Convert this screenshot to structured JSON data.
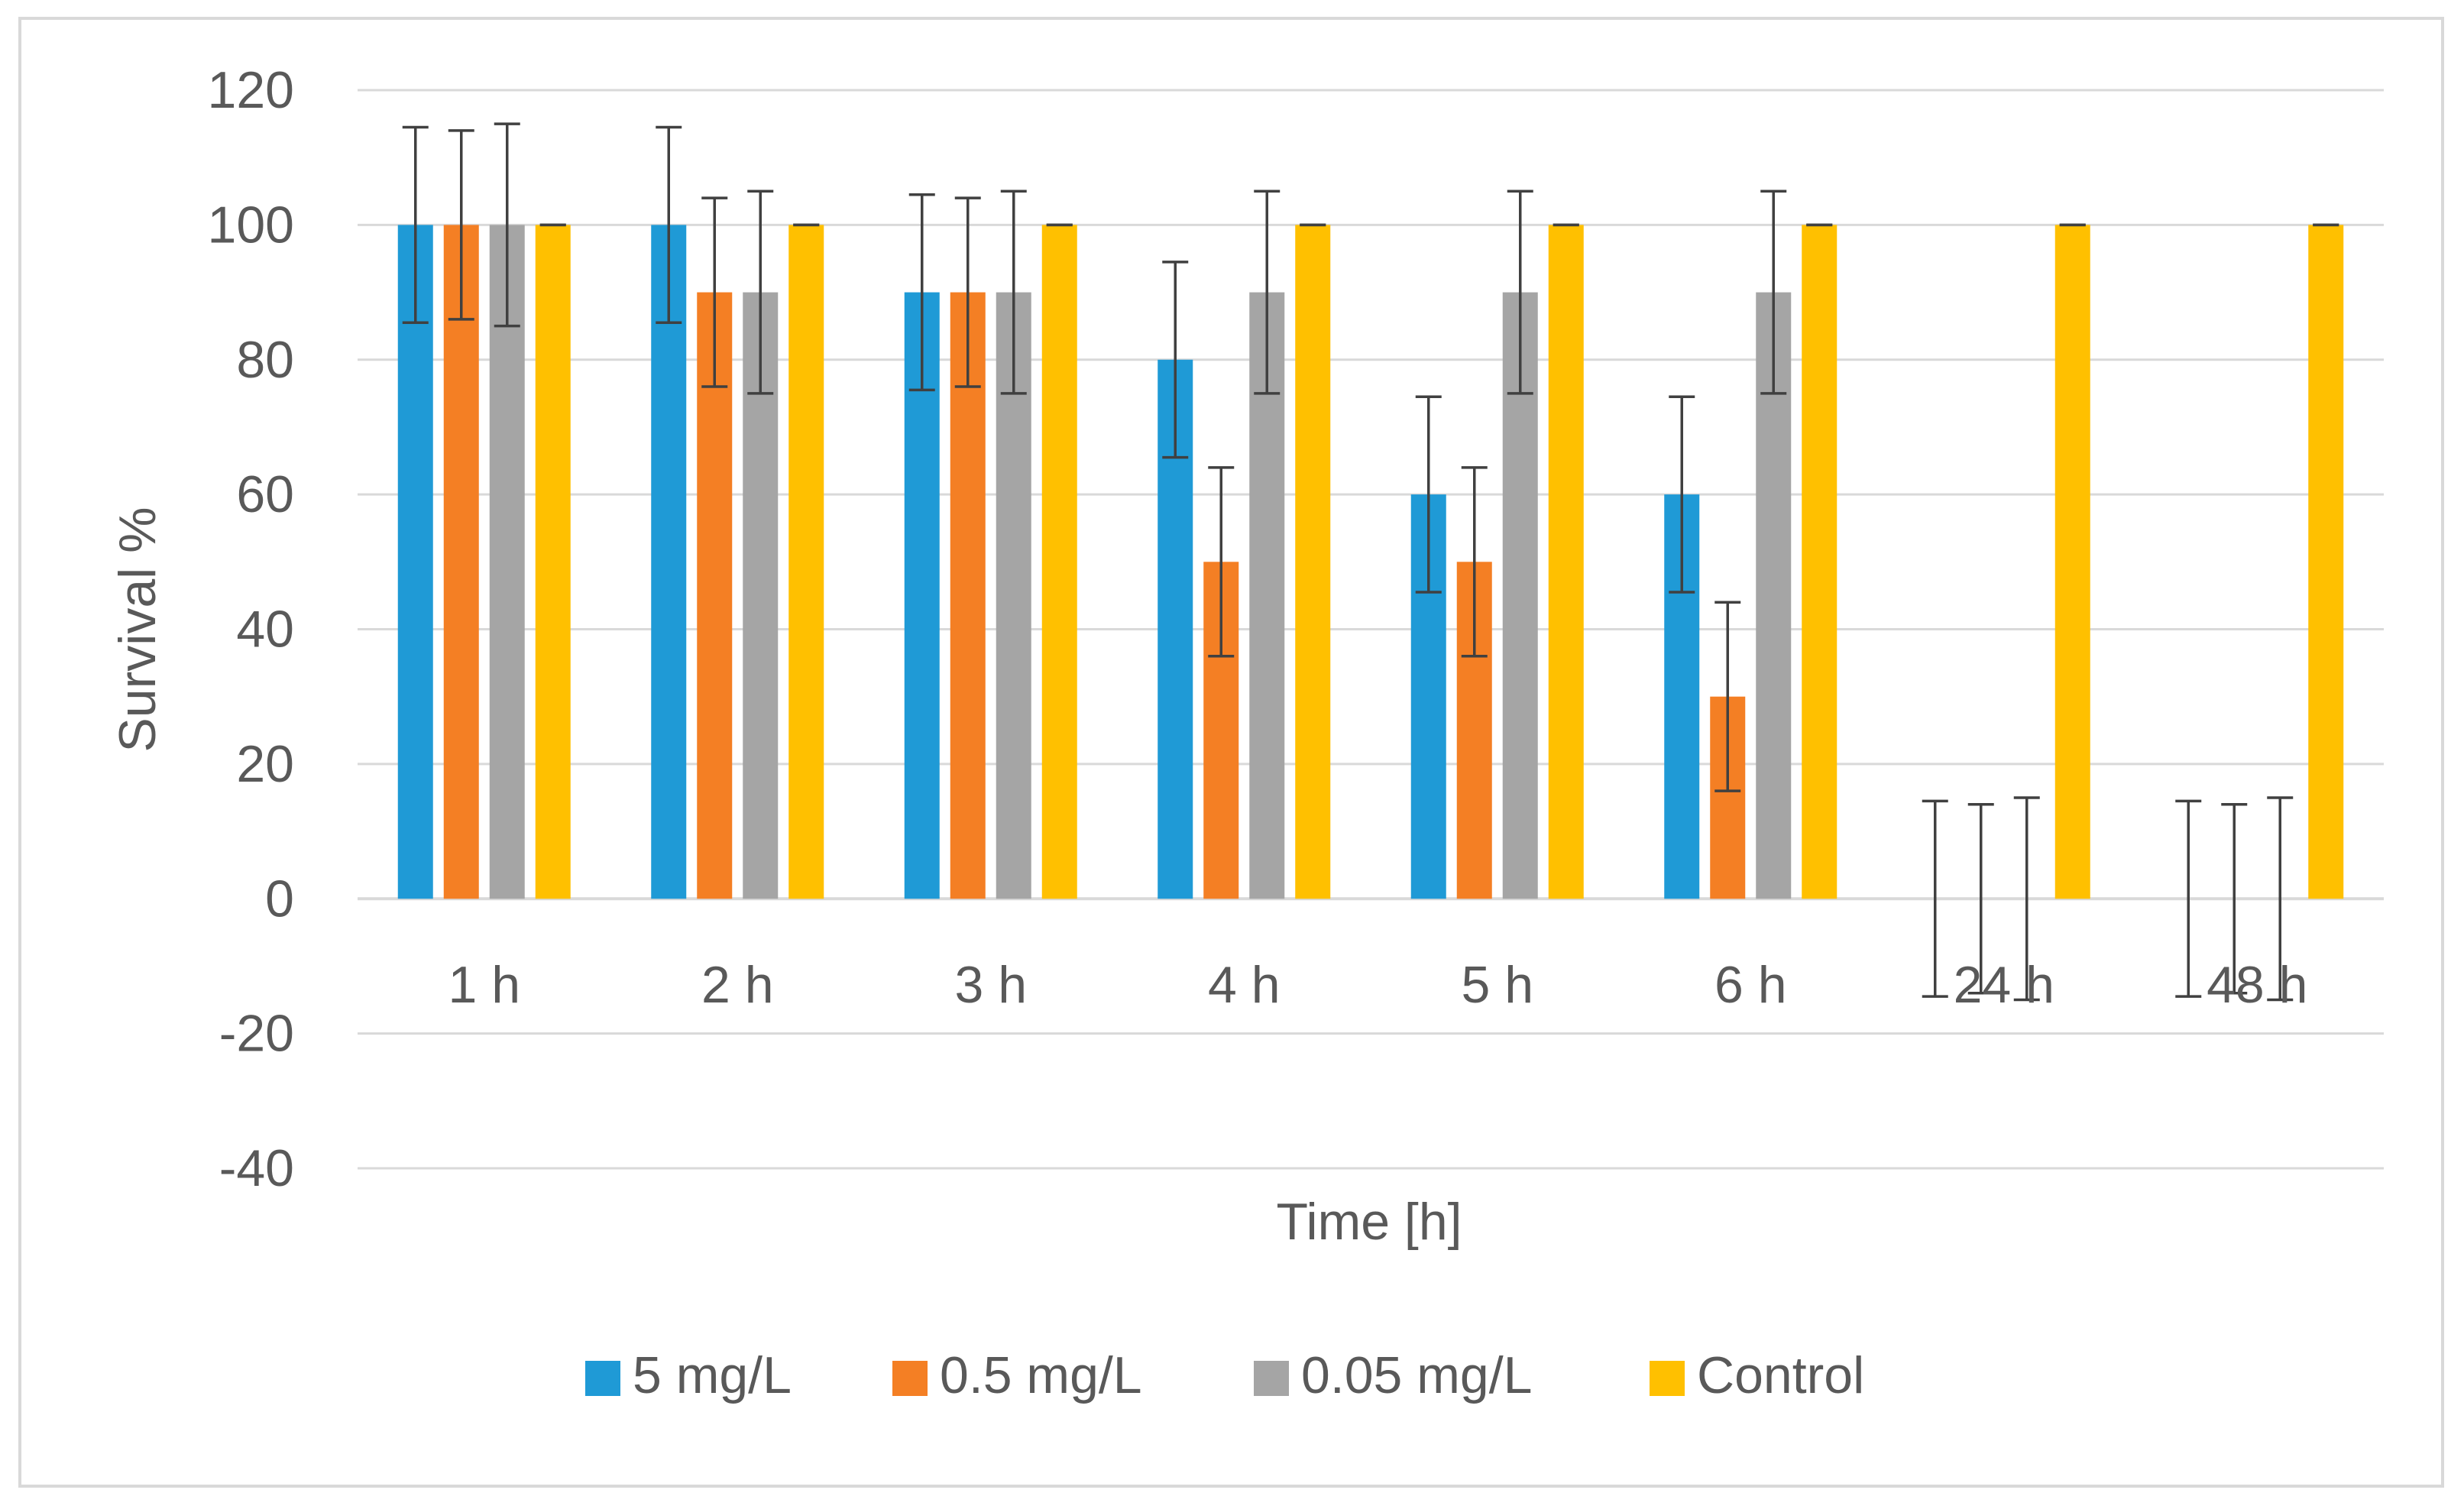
{
  "chart_data": {
    "type": "bar",
    "title": "",
    "xlabel": "Time [h]",
    "ylabel": "Survival %",
    "ylim": [
      -40,
      120
    ],
    "yticks": [
      120,
      100,
      80,
      60,
      40,
      20,
      0,
      -20,
      -40
    ],
    "ytick_labels": [
      "120",
      "100",
      "80",
      "60",
      "40",
      "20",
      "0",
      "-20",
      "-40"
    ],
    "grid": true,
    "legend_position": "bottom-center",
    "categories": [
      "1 h",
      "2 h",
      "3 h",
      "4 h",
      "5 h",
      "6 h",
      "24 h",
      "48 h"
    ],
    "series": [
      {
        "name": "5 mg/L",
        "color": "#1f9ad6",
        "values": [
          100,
          100,
          90,
          80,
          60,
          60,
          0,
          0
        ],
        "errors": [
          14.5,
          14.5,
          14.5,
          14.5,
          14.5,
          14.5,
          14.5,
          14.5
        ]
      },
      {
        "name": "0.5 mg/L",
        "color": "#f47f24",
        "values": [
          100,
          90,
          90,
          50,
          50,
          30,
          0,
          0
        ],
        "errors": [
          14,
          14,
          14,
          14,
          14,
          14,
          14,
          14
        ]
      },
      {
        "name": "0.05 mg/L",
        "color": "#a5a5a5",
        "values": [
          100,
          90,
          90,
          90,
          90,
          90,
          0,
          0
        ],
        "errors": [
          15,
          15,
          15,
          15,
          15,
          15,
          15,
          15
        ]
      },
      {
        "name": "Control",
        "color": "#ffc000",
        "values": [
          100,
          100,
          100,
          100,
          100,
          100,
          100,
          100
        ],
        "errors": [
          0,
          0,
          0,
          0,
          0,
          0,
          0,
          0
        ]
      }
    ]
  }
}
